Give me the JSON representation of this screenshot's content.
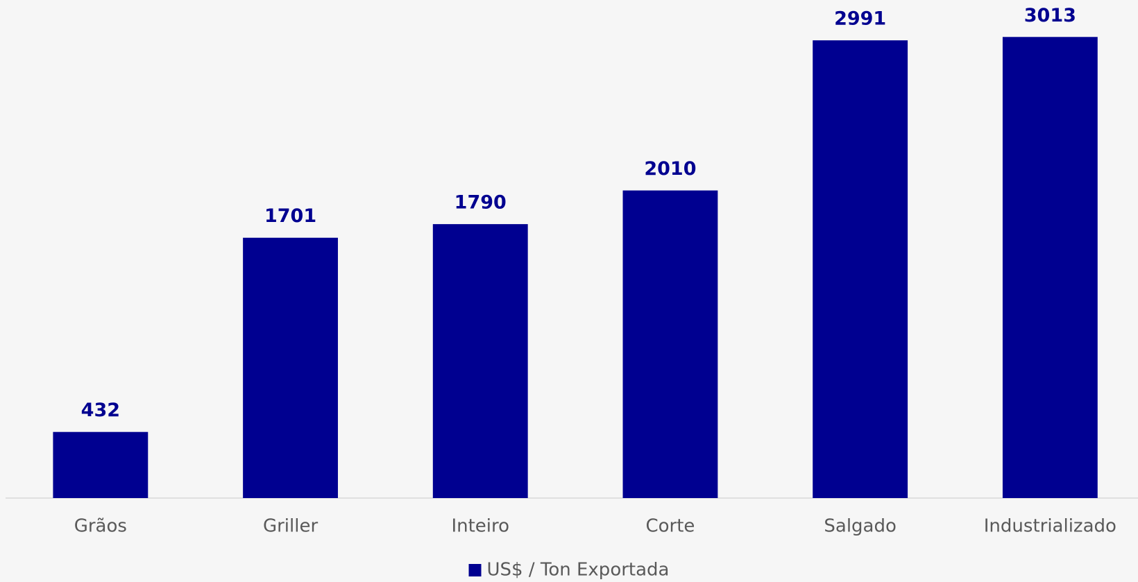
{
  "chart_data": {
    "type": "bar",
    "categories": [
      "Grãos",
      "Griller",
      "Inteiro",
      "Corte",
      "Salgado",
      "Industrializado"
    ],
    "series": [
      {
        "name": "US$ / Ton Exportada",
        "color": "#000090",
        "values": [
          432,
          1701,
          1790,
          2010,
          2991,
          3013
        ]
      }
    ],
    "ylim": [
      0,
      3250
    ],
    "legend": "bottom"
  }
}
